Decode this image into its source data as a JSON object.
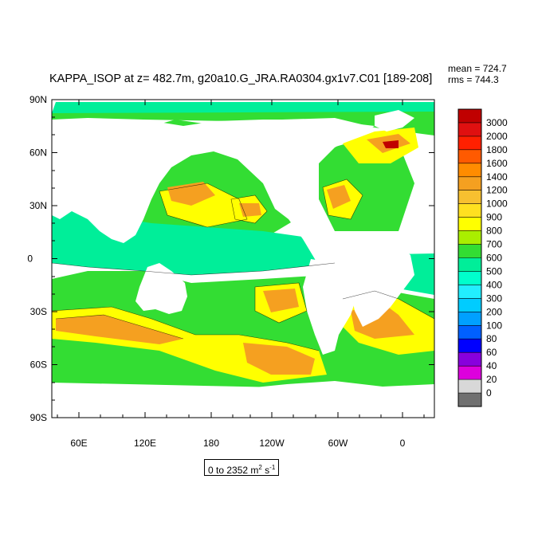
{
  "title": "KAPPA_ISOP at z= 482.7m, g20a10.G_JRA.RA0304.gx1v7.C01 [189-208]",
  "stats": {
    "mean": "mean = 724.7",
    "rms": "rms = 744.3"
  },
  "lat_ticks": [
    "90N",
    "60N",
    "30N",
    "0",
    "30S",
    "60S",
    "90S"
  ],
  "lon_ticks": [
    "60E",
    "120E",
    "180",
    "120W",
    "60W",
    "0"
  ],
  "colorbar": {
    "labels": [
      "3000",
      "2000",
      "1800",
      "1600",
      "1400",
      "1200",
      "1000",
      "900",
      "800",
      "700",
      "600",
      "500",
      "400",
      "300",
      "200",
      "100",
      "80",
      "60",
      "40",
      "20",
      "0"
    ],
    "colors": [
      "#c00000",
      "#e01010",
      "#ff2000",
      "#ff5a00",
      "#ff8c00",
      "#f5a020",
      "#f7c030",
      "#ffe020",
      "#ffff00",
      "#aaee00",
      "#33dd33",
      "#00ee99",
      "#00ffcc",
      "#22eeff",
      "#00ccff",
      "#00a0ff",
      "#0060ff",
      "#0000ff",
      "#8800dd",
      "#dd00dd",
      "#d8d8d8",
      "#707070"
    ]
  },
  "range": {
    "prefix": "0 to 2352 m",
    "sup1": "2",
    "mid": " s",
    "sup2": "-1"
  }
}
